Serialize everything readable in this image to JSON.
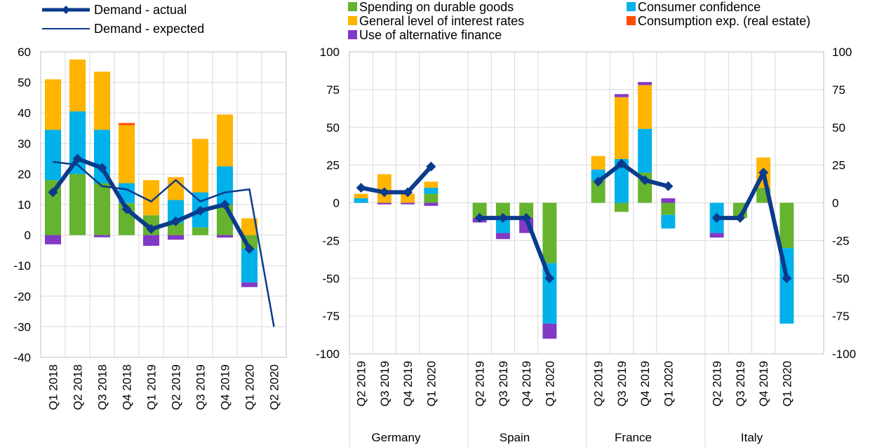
{
  "legend": {
    "lines": [
      {
        "label": "Demand - actual",
        "color": "#0a3b8c"
      },
      {
        "label": "Demand - expected",
        "color": "#0a3b8c"
      }
    ],
    "components": [
      {
        "key": "durable",
        "label": "Spending on durable goods",
        "color": "#65b32e"
      },
      {
        "key": "confidence",
        "label": "Consumer confidence",
        "color": "#00b1ea"
      },
      {
        "key": "interest",
        "label": "General level of interest rates",
        "color": "#ffb400"
      },
      {
        "key": "real_estate",
        "label": "Consumption exp. (real estate)",
        "color": "#ff4b00"
      },
      {
        "key": "alt_finance",
        "label": "Use of alternative finance",
        "color": "#8139c6"
      }
    ]
  },
  "chart_data": [
    {
      "type": "bar",
      "panel": "euro-area",
      "categories": [
        "Q1 2018",
        "Q2 2018",
        "Q3 2018",
        "Q4 2018",
        "Q1 2019",
        "Q2 2019",
        "Q3 2019",
        "Q4 2019",
        "Q1 2020",
        "Q2 2020"
      ],
      "ylim": [
        -40,
        60
      ],
      "yticks": [
        "-40",
        "-30",
        "-20",
        "-10",
        "0",
        "10",
        "20",
        "30",
        "40",
        "50",
        "60"
      ],
      "stack_order": [
        "durable",
        "confidence",
        "interest",
        "real_estate",
        "alt_finance"
      ],
      "stacks": [
        {
          "durable": 18,
          "confidence": 16.5,
          "interest": 16.5,
          "alt_finance": -3
        },
        {
          "durable": 20,
          "confidence": 20.5,
          "interest": 17
        },
        {
          "durable": 17,
          "confidence": 17.5,
          "interest": 19,
          "alt_finance": -0.7
        },
        {
          "durable": 10.5,
          "confidence": 6.5,
          "interest": 19,
          "real_estate": 0.7
        },
        {
          "durable": 6.5,
          "interest": 11.5,
          "alt_finance": -3.5
        },
        {
          "durable": 4,
          "confidence": 7.5,
          "interest": 7.5,
          "alt_finance": -1.5
        },
        {
          "durable": 2.5,
          "confidence": 11.5,
          "interest": 17.5
        },
        {
          "durable": 10,
          "confidence": 12.5,
          "interest": 17,
          "alt_finance": -0.8
        },
        {
          "durable": -4.5,
          "confidence": -11,
          "interest": 5.5,
          "alt_finance": -1.5
        },
        {}
      ],
      "series": [
        {
          "name": "Demand - actual",
          "values": [
            14,
            25,
            22,
            8.5,
            2,
            4.5,
            8,
            10,
            -4.5,
            null
          ]
        },
        {
          "name": "Demand - expected",
          "values": [
            24,
            23,
            16,
            15,
            11,
            18,
            11,
            14,
            15,
            -30
          ]
        }
      ]
    },
    {
      "type": "bar",
      "panel": "countries",
      "groups": [
        {
          "name": "Germany",
          "categories": [
            "Q2 2019",
            "Q3 2019",
            "Q4 2019",
            "Q1 2020"
          ]
        },
        {
          "name": "Spain",
          "categories": [
            "Q2 2019",
            "Q3 2019",
            "Q4 2019",
            "Q1 2020"
          ]
        },
        {
          "name": "France",
          "categories": [
            "Q2 2019",
            "Q3 2019",
            "Q4 2019",
            "Q1 2020"
          ]
        },
        {
          "name": "Italy",
          "categories": [
            "Q2 2019",
            "Q3 2019",
            "Q4 2019",
            "Q1 2020"
          ]
        }
      ],
      "ylim": [
        -100,
        100
      ],
      "yticks": [
        "-100",
        "-75",
        "-50",
        "-25",
        "0",
        "25",
        "50",
        "75",
        "100"
      ],
      "stack_order": [
        "durable",
        "confidence",
        "interest",
        "real_estate",
        "alt_finance"
      ],
      "stacks": [
        {
          "confidence": 3,
          "interest": 3
        },
        {
          "interest": 19,
          "alt_finance": -1
        },
        {
          "interest": 6,
          "alt_finance": -1
        },
        {
          "durable": 6,
          "confidence": 4,
          "interest": 4,
          "alt_finance": -2
        },
        {
          "durable": -10,
          "alt_finance": -3
        },
        {
          "durable": -10,
          "confidence": -10,
          "alt_finance": -4
        },
        {
          "durable": -10,
          "alt_finance": -10
        },
        {
          "durable": -40,
          "confidence": -40,
          "alt_finance": -10
        },
        {
          "durable": 15,
          "confidence": 7,
          "interest": 9
        },
        {
          "durable": -6,
          "confidence": 29,
          "interest": 41,
          "alt_finance": 2
        },
        {
          "durable": 20,
          "confidence": 29,
          "interest": 29,
          "alt_finance": 2
        },
        {
          "durable": -8,
          "confidence": -9,
          "alt_finance": 3
        },
        {
          "confidence": -20,
          "alt_finance": -3
        },
        {
          "durable": -10
        },
        {
          "durable": 10,
          "interest": 20
        },
        {
          "durable": -30,
          "confidence": -50
        }
      ],
      "series": [
        {
          "name": "Demand - actual",
          "values": [
            10,
            7,
            7,
            24,
            -10,
            -10,
            -10,
            -50,
            14,
            26,
            15,
            11,
            -10,
            -10,
            20,
            -50
          ]
        }
      ]
    }
  ]
}
